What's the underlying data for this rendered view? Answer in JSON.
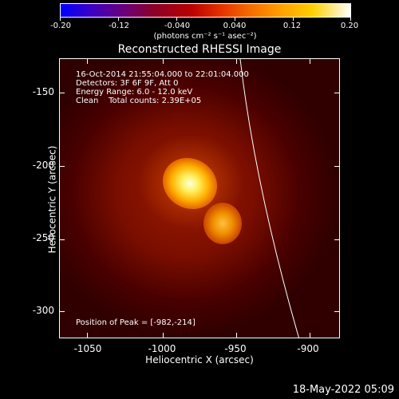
{
  "colorbar": {
    "ticks": [
      "-0.20",
      "-0.12",
      "-0.040",
      "0.040",
      "0.12",
      "0.20"
    ],
    "unit": "(photons cm⁻² s⁻¹ asec⁻²)"
  },
  "title": "Reconstructed RHESSI Image",
  "info": {
    "line1": "16-Oct-2014 21:55:04.000 to 22:01:04.000",
    "line2": "Detectors: 3F 6F 9F, Att 0",
    "line3": "Energy Range: 6.0 - 12.0 keV",
    "line4": "Clean    Total counts: 2.39E+05",
    "peak": "Position of Peak = [-982,-214]"
  },
  "axes": {
    "xlabel": "Heliocentric X (arcsec)",
    "ylabel": "Heliocentric Y (arcsec)",
    "xticks": [
      "-1050",
      "-1000",
      "-950",
      "-900"
    ],
    "yticks": [
      "-150",
      "-200",
      "-250",
      "-300"
    ]
  },
  "datestamp": "18-May-2022 05:09",
  "colors": {
    "background": "#000000",
    "text": "#ffffff"
  }
}
